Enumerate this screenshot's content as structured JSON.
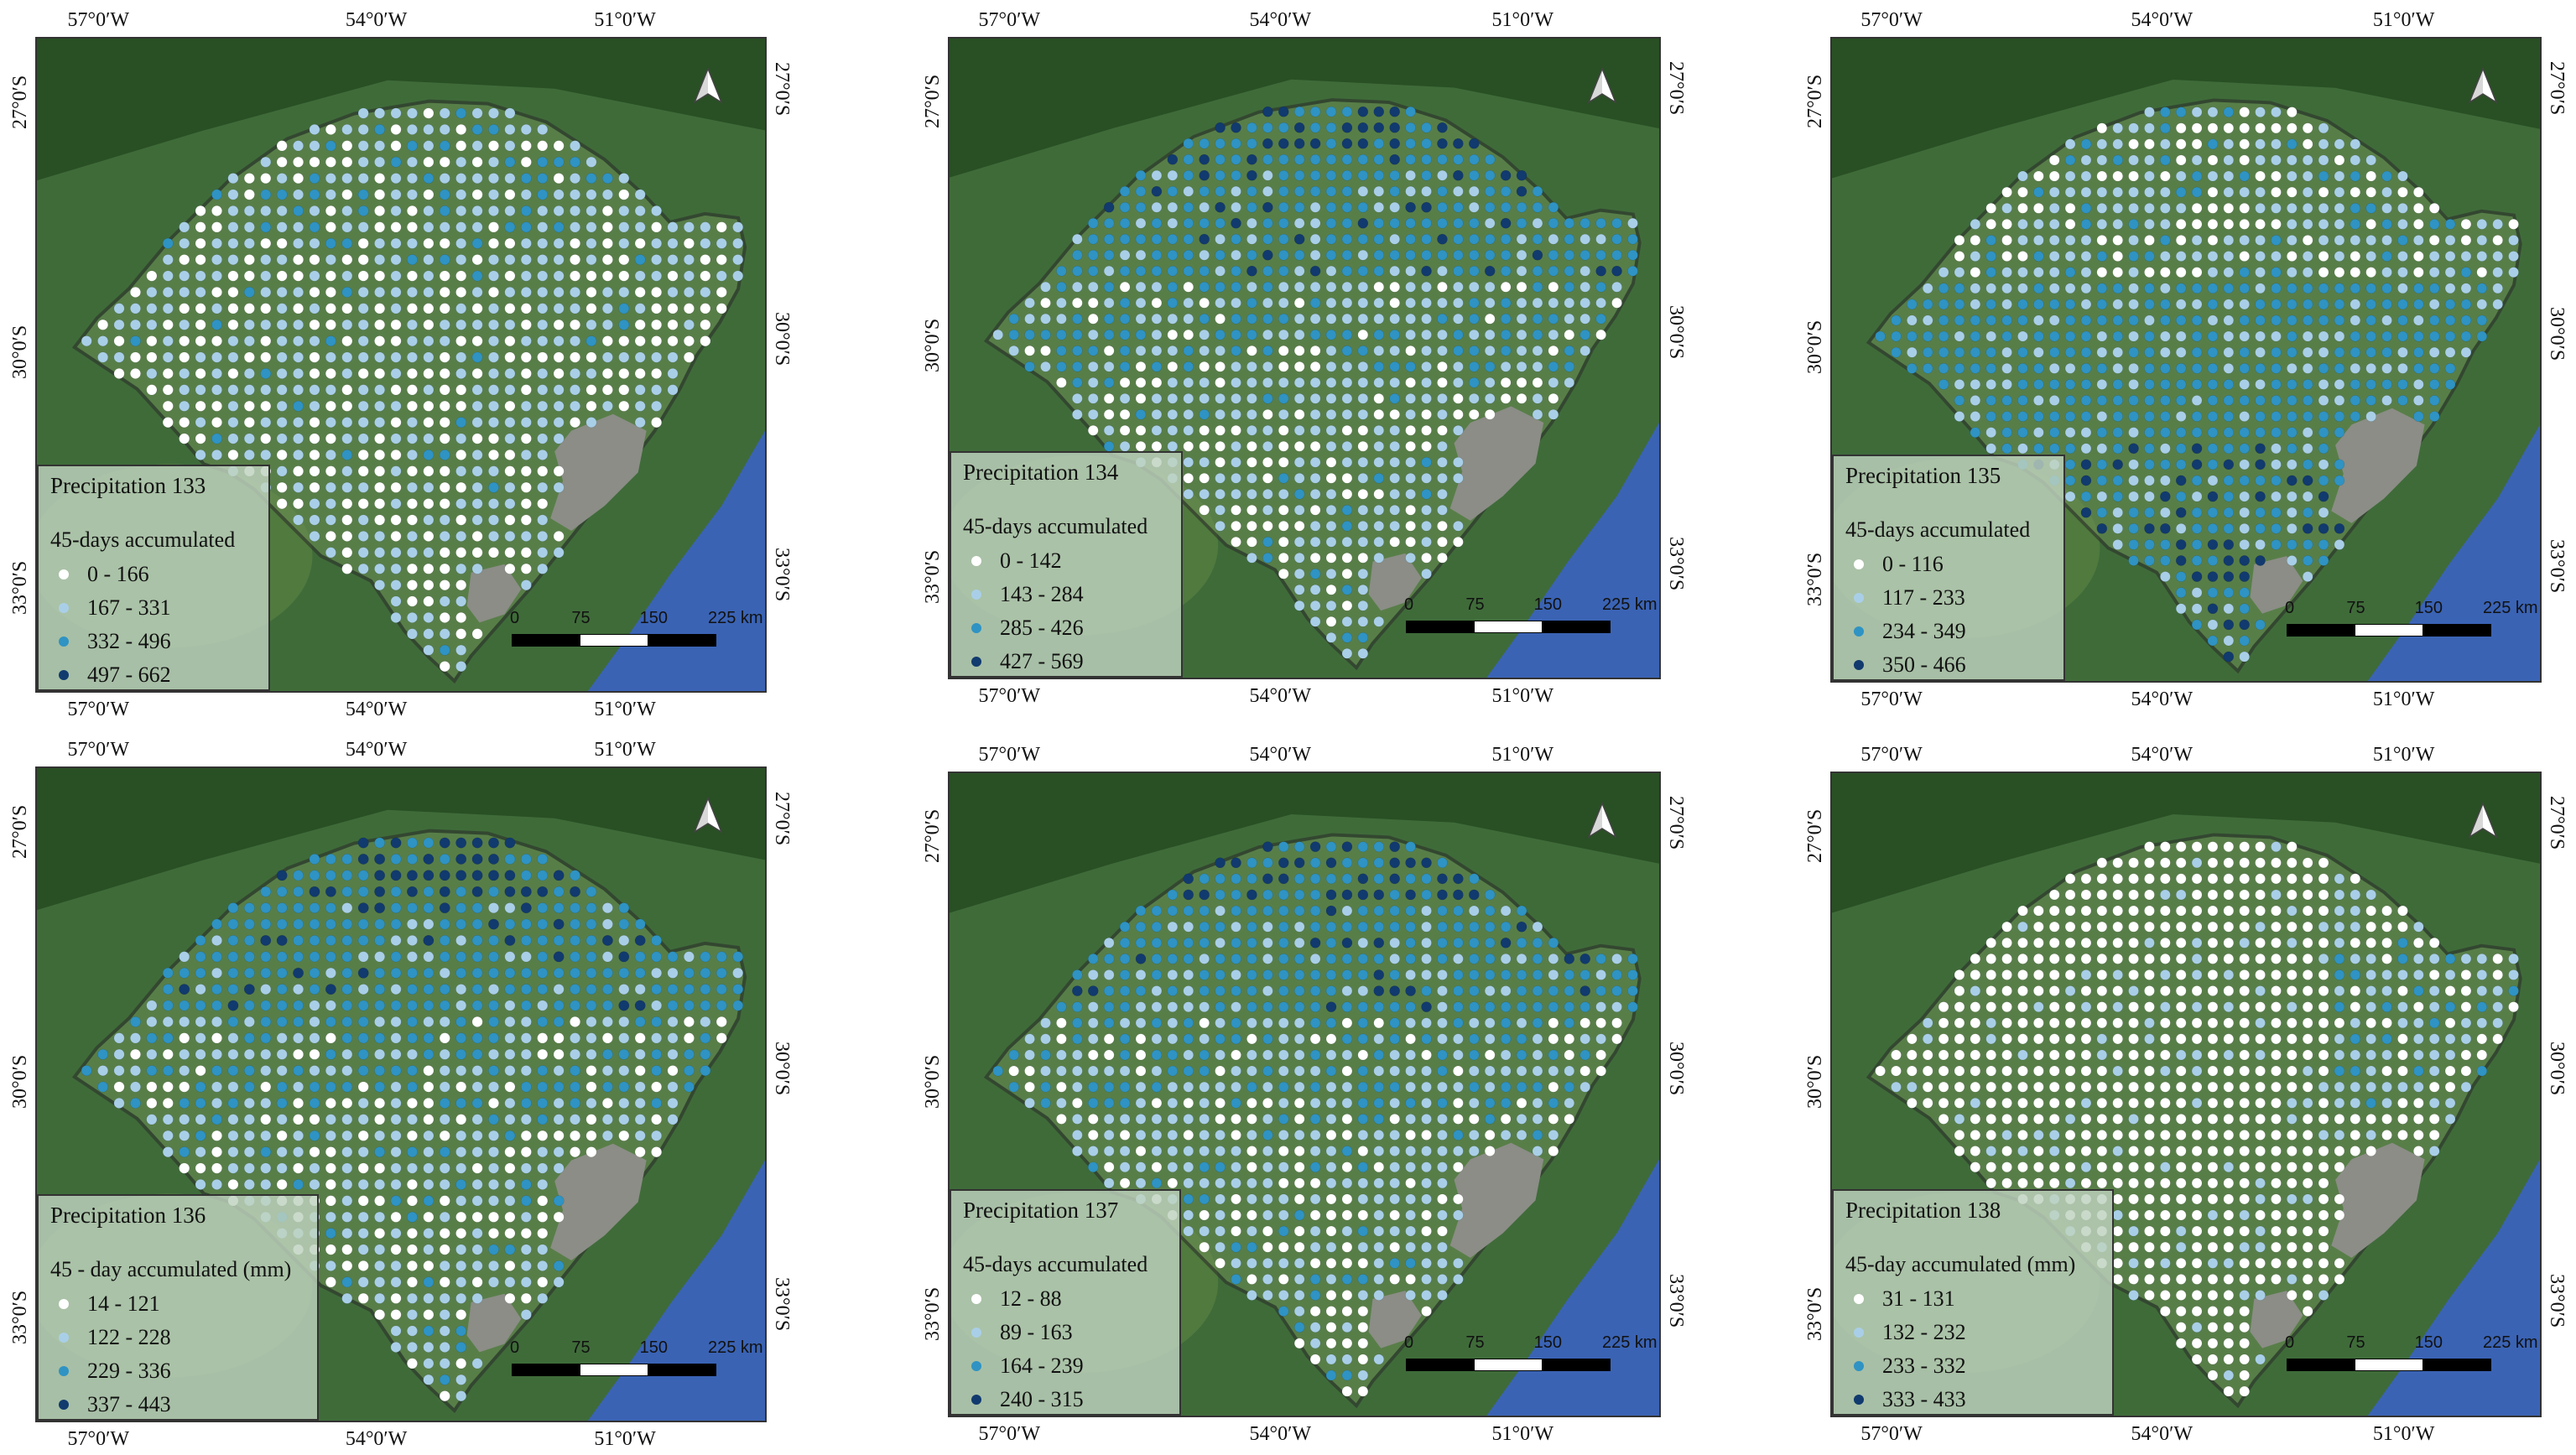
{
  "figure": {
    "colors": {
      "land_green": "#3f6b39",
      "land_dark": "#24481f",
      "ocean": "#3a63b4",
      "lagoon": "#8b8d86",
      "boundary": "#2a2a2a",
      "scale_black": "#000000",
      "scale_white": "#ffffff"
    },
    "class_colors": [
      "#ffffff",
      "#a9cfe8",
      "#2f93c3",
      "#113a6e"
    ],
    "panels": [
      {
        "title": "Precipitation 133",
        "subtitle": "45-days accumulated",
        "classes": [
          "0 - 166",
          "167 - 331",
          "332 - 496",
          "497 - 662"
        ],
        "lon_labels": [
          "57°0′W",
          "54°0′W",
          "51°0′W"
        ],
        "lat_labels": [
          "27°0′S",
          "30°0′S",
          "33°0′S"
        ],
        "scale_labels": [
          "0",
          "75",
          "150",
          "225 km"
        ],
        "pattern": "north-light"
      },
      {
        "title": "Precipitation 134",
        "subtitle": "45-days accumulated",
        "classes": [
          "0 - 142",
          "143 - 284",
          "285 - 426",
          "427 - 569"
        ],
        "lon_labels": [
          "57°0′W",
          "54°0′W",
          "51°0′W"
        ],
        "lat_labels": [
          "27°0′S",
          "30°0′S",
          "33°0′S"
        ],
        "scale_labels": [
          "0",
          "75",
          "150",
          "225 km"
        ],
        "pattern": "north-heavy"
      },
      {
        "title": "Precipitation 135",
        "subtitle": "45-days accumulated",
        "classes": [
          "0 - 116",
          "117 - 233",
          "234 - 349",
          "350 - 466"
        ],
        "lon_labels": [
          "57°0′W",
          "54°0′W",
          "51°0′W"
        ],
        "lat_labels": [
          "27°0′S",
          "30°0′S",
          "33°0′S"
        ],
        "scale_labels": [
          "0",
          "75",
          "150",
          "225 km"
        ],
        "pattern": "south-heavy"
      },
      {
        "title": "Precipitation 136",
        "subtitle": "45 - day accumulated (mm)",
        "classes": [
          "14 - 121",
          "122 - 228",
          "229 - 336",
          "337 - 443"
        ],
        "lon_labels": [
          "57°0′W",
          "54°0′W",
          "51°0′W"
        ],
        "lat_labels": [
          "27°0′S",
          "30°0′S",
          "33°0′S"
        ],
        "scale_labels": [
          "0",
          "75",
          "150",
          "225 km"
        ],
        "pattern": "north-heavy"
      },
      {
        "title": "Precipitation 137",
        "subtitle": "45-days accumulated",
        "classes": [
          "12 - 88",
          "89 - 163",
          "164 - 239",
          "240 - 315"
        ],
        "lon_labels": [
          "57°0′W",
          "54°0′W",
          "51°0′W"
        ],
        "lat_labels": [
          "27°0′S",
          "30°0′S",
          "33°0′S"
        ],
        "scale_labels": [
          "0",
          "75",
          "150",
          "225 km"
        ],
        "pattern": "north-heavy"
      },
      {
        "title": "Precipitation 138",
        "subtitle": "45-day accumulated (mm)",
        "classes": [
          "31 - 131",
          "132 - 232",
          "233 - 332",
          "333 - 433"
        ],
        "lon_labels": [
          "57°0′W",
          "54°0′W",
          "51°0′W"
        ],
        "lat_labels": [
          "27°0′S",
          "30°0′S",
          "33°0′S"
        ],
        "scale_labels": [
          "0",
          "75",
          "150",
          "225 km"
        ],
        "pattern": "mostly-low"
      }
    ]
  }
}
